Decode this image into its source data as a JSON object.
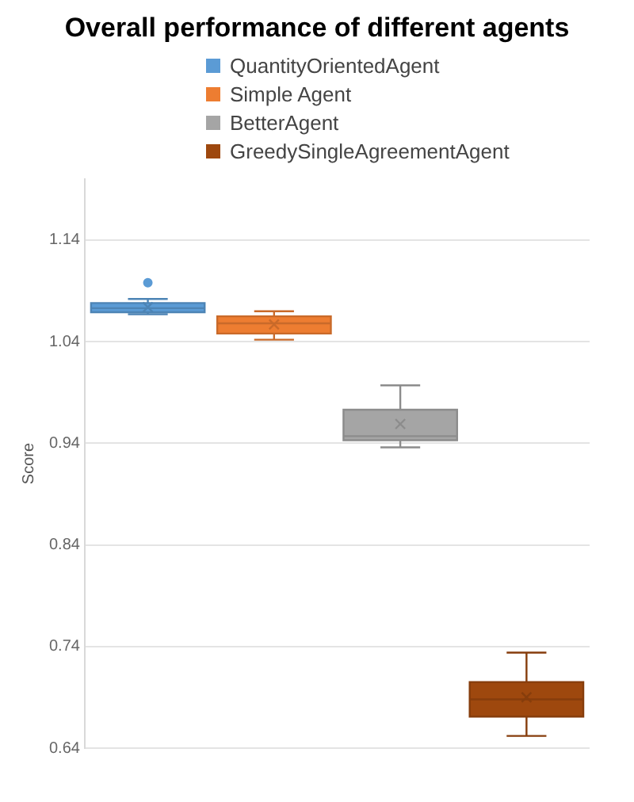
{
  "chart_data": {
    "type": "box",
    "title": "Overall performance of different agents",
    "ylabel": "Score",
    "categories": [
      null
    ],
    "series": [
      {
        "name": "QuantityOrientedAgent",
        "color": "#5b9bd5",
        "boxes": [
          {
            "low": 1.067,
            "q1": 1.069,
            "median": 1.073,
            "q3": 1.078,
            "high": 1.082,
            "mean": 1.074,
            "outliers": [
              1.098
            ]
          }
        ]
      },
      {
        "name": "Simple Agent",
        "color": "#ed7d31",
        "boxes": [
          {
            "low": 1.042,
            "q1": 1.048,
            "median": 1.058,
            "q3": 1.065,
            "high": 1.07,
            "mean": 1.057
          }
        ]
      },
      {
        "name": "BetterAgent",
        "color": "#a5a5a5",
        "boxes": [
          {
            "low": 0.936,
            "q1": 0.943,
            "median": 0.947,
            "q3": 0.973,
            "high": 0.997,
            "mean": 0.959
          }
        ]
      },
      {
        "name": "GreedySingleAgreementAgent",
        "color": "#9e480e",
        "boxes": [
          {
            "low": 0.652,
            "q1": 0.671,
            "median": 0.688,
            "q3": 0.705,
            "high": 0.734,
            "mean": 0.69
          }
        ]
      }
    ],
    "ylim": [
      0.64,
      1.2
    ],
    "yticks": [
      0.64,
      0.74,
      0.84,
      0.94,
      1.04,
      1.14
    ],
    "grid": "y",
    "legend": "top"
  }
}
